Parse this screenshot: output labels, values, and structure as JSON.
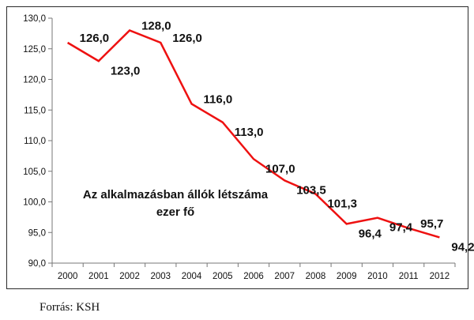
{
  "chart_data": {
    "type": "line",
    "title_lines": [
      "Az alkalmazásban állók létszáma",
      "ezer fő"
    ],
    "x": [
      "2000",
      "2001",
      "2002",
      "2003",
      "2004",
      "2005",
      "2006",
      "2007",
      "2008",
      "2009",
      "2010",
      "2011",
      "2012"
    ],
    "series": [
      {
        "values": [
          126.0,
          123.0,
          128.0,
          126.0,
          116.0,
          113.0,
          107.0,
          103.5,
          101.3,
          96.4,
          97.4,
          95.7,
          94.2
        ],
        "labels": [
          "126,0",
          "123,0",
          "128,0",
          "126,0",
          "116,0",
          "113,0",
          "107,0",
          "103,5",
          "101,3",
          "96,4",
          "97,4",
          "95,7",
          "94,2"
        ],
        "color": "#ee1111"
      }
    ],
    "ylim": [
      90,
      130
    ],
    "yticks": [
      "90,0",
      "95,0",
      "100,0",
      "105,0",
      "110,0",
      "115,0",
      "120,0",
      "125,0",
      "130,0"
    ],
    "grid": false,
    "legend": "none"
  },
  "source_note": "Forrás: KSH"
}
